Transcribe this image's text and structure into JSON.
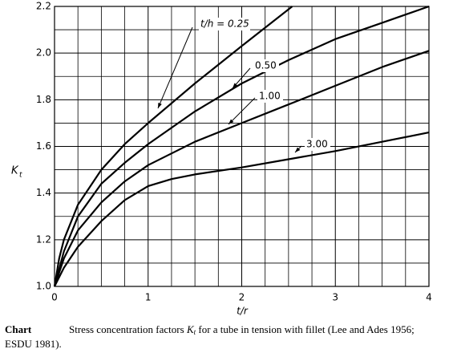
{
  "chart_data": {
    "type": "line",
    "xlabel": "t/r",
    "ylabel": "K",
    "ylabel_sub": "t",
    "caption_label": "Chart",
    "caption_parts": [
      "Stress concentration factors ",
      "K",
      "t",
      " for a tube in tension with fillet (Lee and Ades 1956;",
      "ESDU 1981)."
    ],
    "xlim": [
      0,
      4
    ],
    "ylim": [
      1.0,
      2.2
    ],
    "xticks": [
      0,
      1,
      2,
      3,
      4
    ],
    "yticks": [
      {
        "value": 1.0,
        "label": "1.0"
      },
      {
        "value": 1.2,
        "label": "1.2"
      },
      {
        "value": 1.4,
        "label": "1.4"
      },
      {
        "value": 1.6,
        "label": "1.6"
      },
      {
        "value": 1.8,
        "label": "1.8"
      },
      {
        "value": 2.0,
        "label": "2.0"
      },
      {
        "value": 2.2,
        "label": "2.2"
      }
    ],
    "xgrid": [
      0.25,
      0.5,
      0.75,
      1.25,
      1.5,
      1.75,
      2.25,
      2.5,
      2.75,
      3.25,
      3.5,
      3.75
    ],
    "ygrid": [
      1.1,
      1.3,
      1.5,
      1.7,
      1.9,
      2.1
    ],
    "grid": true,
    "series": [
      {
        "name": "t/h = 0.25",
        "color": "#000000",
        "x": [
          0,
          0.05,
          0.1,
          0.25,
          0.5,
          0.75,
          1,
          1.5,
          2,
          2.54
        ],
        "values": [
          1.0,
          1.12,
          1.2,
          1.35,
          1.5,
          1.61,
          1.7,
          1.87,
          2.03,
          2.2
        ]
      },
      {
        "name": "0.50",
        "color": "#000000",
        "x": [
          0,
          0.1,
          0.25,
          0.5,
          0.75,
          1,
          1.5,
          2,
          2.5,
          3,
          3.5,
          4
        ],
        "values": [
          1.0,
          1.15,
          1.3,
          1.44,
          1.53,
          1.61,
          1.75,
          1.87,
          1.97,
          2.06,
          2.13,
          2.2
        ]
      },
      {
        "name": "1.00",
        "color": "#000000",
        "x": [
          0,
          0.1,
          0.25,
          0.5,
          0.75,
          1,
          1.5,
          2,
          2.5,
          3,
          3.5,
          4
        ],
        "values": [
          1.0,
          1.12,
          1.24,
          1.36,
          1.45,
          1.52,
          1.62,
          1.7,
          1.78,
          1.86,
          1.94,
          2.01
        ]
      },
      {
        "name": "3.00",
        "color": "#000000",
        "x": [
          0,
          0.1,
          0.25,
          0.5,
          0.75,
          1,
          1.25,
          1.5,
          2,
          2.5,
          3,
          3.5,
          4
        ],
        "values": [
          1.0,
          1.08,
          1.17,
          1.28,
          1.37,
          1.43,
          1.46,
          1.48,
          1.51,
          1.545,
          1.58,
          1.62,
          1.66
        ]
      }
    ]
  }
}
